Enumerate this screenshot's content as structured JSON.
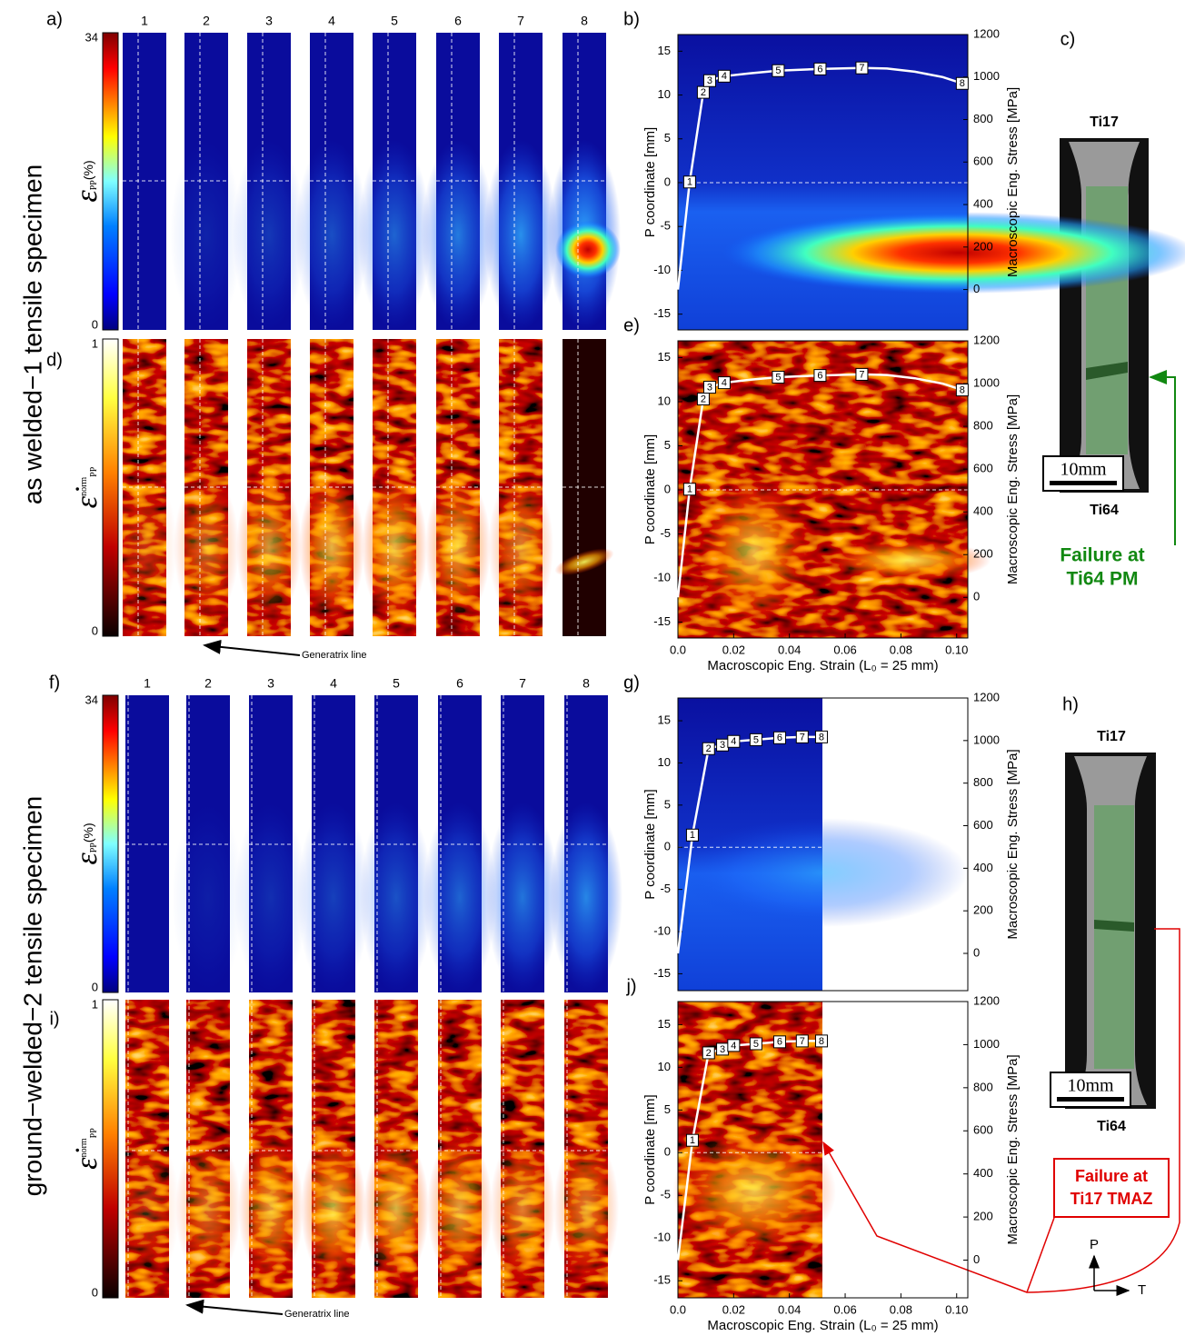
{
  "figure": {
    "panel_labels": {
      "a": "a)",
      "c": "c)",
      "d": "d)",
      "f": "f)",
      "h": "h)",
      "i": "i)"
    },
    "row_titles": [
      "as welded−1 tensile specimen",
      "ground−welded−2 tensile specimen"
    ],
    "column_numbers": [
      "1",
      "2",
      "3",
      "4",
      "5",
      "6",
      "7",
      "8"
    ],
    "colorbars": [
      {
        "max": 34,
        "min": 0,
        "symbol": "ε",
        "sub": "PP",
        "unit": "(%)"
      },
      {
        "max": 1,
        "min": 0,
        "symbol": "ε̇",
        "sup": "norm",
        "sub": "PP"
      }
    ],
    "generatrix": "Generatrix line",
    "specimen": {
      "top": "Ti17",
      "bottom": "Ti64",
      "scale": "10mm"
    },
    "failure_1": [
      "Failure at",
      "Ti64 PM"
    ],
    "failure_2": [
      "Failure at",
      "Ti17 TMAZ"
    ],
    "axes_glyph": {
      "p": "P",
      "t": "T"
    }
  },
  "chart_data": [
    {
      "type": "line",
      "panel": "b)",
      "ylabel": "P coordinate [mm]",
      "y2label": "Macroscopic Eng. Stress [MPa]",
      "xlim": [
        0,
        0.104
      ],
      "ylim": [
        -16.8,
        16.9
      ],
      "yticks": [
        -15,
        -10,
        -5,
        0,
        5,
        10,
        15
      ],
      "y2lim": [
        -190,
        1200
      ],
      "y2ticks": [
        0,
        200,
        400,
        600,
        800,
        1000,
        1200
      ],
      "series": [
        {
          "color": "#ffffff",
          "axis": "y2",
          "x": [
            0,
            0.0042,
            0.0091,
            0.0114,
            0.0166,
            0.026,
            0.036,
            0.051,
            0.066,
            0.075,
            0.085,
            0.095,
            0.102
          ],
          "values": [
            0,
            506,
            928,
            983,
            1004,
            1018,
            1030,
            1038,
            1043,
            1040,
            1025,
            1000,
            970
          ],
          "point_labels": [
            null,
            "1",
            "2",
            "3",
            "4",
            null,
            "5",
            "6",
            "7",
            null,
            null,
            null,
            "8"
          ]
        }
      ]
    },
    {
      "type": "line",
      "panel": "e)",
      "ylabel": "P coordinate [mm]",
      "y2label": "Macroscopic Eng. Stress [MPa]",
      "xlabel": "Macroscopic Eng. Strain (L₀ = 25 mm)",
      "xlim": [
        0,
        0.104
      ],
      "xticks": [
        {
          "value": 0,
          "label": "0.0"
        },
        0.02,
        0.04,
        0.06,
        0.08,
        {
          "value": 0.1,
          "label": "0.10"
        }
      ],
      "ylim": [
        -16.8,
        16.9
      ],
      "yticks": [
        -15,
        -10,
        -5,
        0,
        5,
        10,
        15
      ],
      "y2lim": [
        -190,
        1200
      ],
      "y2ticks": [
        0,
        200,
        400,
        600,
        800,
        1000,
        1200
      ],
      "series": [
        {
          "color": "#ffffff",
          "axis": "y2",
          "x": [
            0,
            0.0042,
            0.0091,
            0.0114,
            0.0166,
            0.026,
            0.036,
            0.051,
            0.066,
            0.075,
            0.085,
            0.095,
            0.102
          ],
          "values": [
            0,
            506,
            928,
            983,
            1004,
            1018,
            1030,
            1038,
            1043,
            1040,
            1025,
            1000,
            970
          ],
          "point_labels": [
            null,
            "1",
            "2",
            "3",
            "4",
            null,
            "5",
            "6",
            "7",
            null,
            null,
            null,
            "8"
          ]
        }
      ]
    },
    {
      "type": "line",
      "panel": "g)",
      "ylabel": "P coordinate [mm]",
      "y2label": "Macroscopic Eng. Stress [MPa]",
      "xlim": [
        0,
        0.104
      ],
      "ylim": [
        -17,
        17.7
      ],
      "yticks": [
        -15,
        -10,
        -5,
        0,
        5,
        10,
        15
      ],
      "y2lim": [
        -175,
        1200
      ],
      "y2ticks": [
        0,
        200,
        400,
        600,
        800,
        1000,
        1200
      ],
      "series": [
        {
          "color": "#ffffff",
          "axis": "y2",
          "x": [
            0,
            0.0052,
            0.011,
            0.016,
            0.02,
            0.028,
            0.0365,
            0.0446,
            0.0515
          ],
          "values": [
            0,
            556,
            962,
            979,
            996,
            1004,
            1013,
            1017,
            1017
          ],
          "point_labels": [
            null,
            "1",
            "2",
            "3",
            "4",
            "5",
            "6",
            "7",
            "8"
          ]
        }
      ]
    },
    {
      "type": "line",
      "panel": "j)",
      "ylabel": "P coordinate [mm]",
      "y2label": "Macroscopic Eng. Stress [MPa]",
      "xlabel": "Macroscopic Eng. Strain (L₀ = 25 mm)",
      "xlim": [
        0,
        0.104
      ],
      "xticks": [
        {
          "value": 0,
          "label": "0.0"
        },
        0.02,
        0.04,
        0.06,
        0.08,
        {
          "value": 0.1,
          "label": "0.10"
        }
      ],
      "ylim": [
        -17,
        17.7
      ],
      "yticks": [
        -15,
        -10,
        -5,
        0,
        5,
        10,
        15
      ],
      "y2lim": [
        -175,
        1200
      ],
      "y2ticks": [
        0,
        200,
        400,
        600,
        800,
        1000,
        1200
      ],
      "series": [
        {
          "color": "#ffffff",
          "axis": "y2",
          "x": [
            0,
            0.0052,
            0.011,
            0.016,
            0.02,
            0.028,
            0.0365,
            0.0446,
            0.0515
          ],
          "values": [
            0,
            556,
            962,
            979,
            996,
            1004,
            1013,
            1017,
            1017
          ],
          "point_labels": [
            null,
            "1",
            "2",
            "3",
            "4",
            "5",
            "6",
            "7",
            "8"
          ]
        }
      ]
    }
  ]
}
